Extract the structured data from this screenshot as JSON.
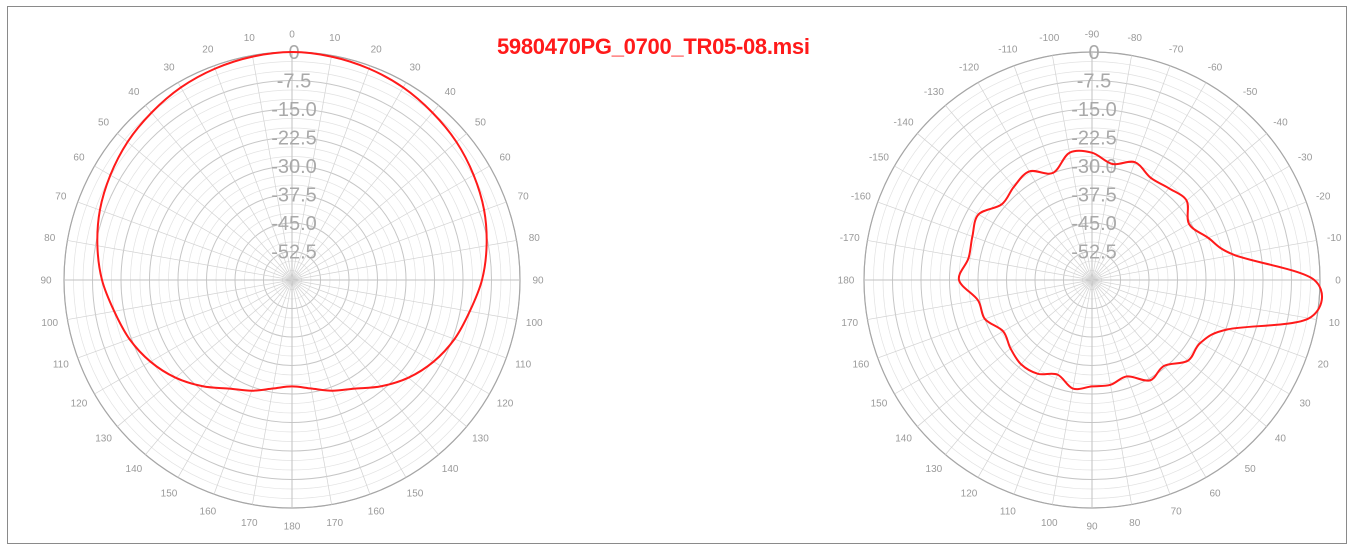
{
  "title": "5980470PG_0700_TR05-08.msi",
  "colors": {
    "trace": "#ff1a1a",
    "grid": "#d2d2d2",
    "title": "#ff1a1a"
  },
  "chart_data": [
    {
      "type": "polar",
      "name": "",
      "radial_labels": [
        "0",
        "-7.5",
        "-15.0",
        "-22.5",
        "-30.0",
        "-37.5",
        "-45.0",
        "-52.5"
      ],
      "radial_ticks": [
        0,
        -7.5,
        -15,
        -22.5,
        -30,
        -37.5,
        -45,
        -52.5
      ],
      "rlim": [
        -60,
        0
      ],
      "angle_labels": [
        "0",
        "10",
        "20",
        "30",
        "40",
        "50",
        "60",
        "70",
        "80",
        "90",
        "100",
        "110",
        "120",
        "130",
        "140",
        "150",
        "160",
        "170",
        "180",
        "170",
        "160",
        "150",
        "140",
        "130",
        "120",
        "110",
        "100",
        "90",
        "80",
        "70",
        "60",
        "50",
        "40",
        "30",
        "20",
        "10"
      ],
      "series": [
        {
          "angle_deg": [
            0,
            10,
            20,
            30,
            40,
            50,
            60,
            70,
            80,
            90,
            100,
            110,
            120,
            130,
            140,
            150,
            160,
            170,
            180,
            190,
            200,
            210,
            220,
            230,
            240,
            250,
            260,
            270,
            280,
            290,
            300,
            310,
            320,
            330,
            340,
            350
          ],
          "value_db": [
            0,
            -0.3,
            -0.8,
            -1.5,
            -2.5,
            -3.5,
            -4.8,
            -6.2,
            -8,
            -10,
            -12.5,
            -14.5,
            -17,
            -20,
            -23.5,
            -27,
            -29,
            -31,
            -32,
            -31,
            -29,
            -27,
            -23.5,
            -20,
            -17,
            -14.5,
            -12.5,
            -10,
            -8,
            -6.2,
            -4.8,
            -3.5,
            -2.5,
            -1.5,
            -0.8,
            -0.3
          ]
        }
      ]
    },
    {
      "type": "polar",
      "name": "",
      "radial_labels": [
        "0",
        "-7.5",
        "-15.0",
        "-22.5",
        "-30.0",
        "-37.5",
        "-45.0",
        "-52.5"
      ],
      "radial_ticks": [
        0,
        -7.5,
        -15,
        -22.5,
        -30,
        -37.5,
        -45,
        -52.5
      ],
      "rlim": [
        -60,
        0
      ],
      "angle_labels": [
        "-90",
        "-80",
        "-70",
        "-60",
        "-50",
        "-40",
        "-30",
        "-20",
        "-10",
        "0",
        "10",
        "20",
        "30",
        "40",
        "50",
        "60",
        "70",
        "80",
        "90",
        "100",
        "110",
        "120",
        "130",
        "140",
        "150",
        "160",
        "170",
        "180",
        "-170",
        "-160",
        "-150",
        "-140",
        "-130",
        "-120",
        "-110",
        "-100"
      ],
      "series": [
        {
          "angle_deg": [
            0,
            10,
            20,
            30,
            40,
            50,
            60,
            70,
            80,
            90,
            100,
            110,
            120,
            130,
            140,
            150,
            160,
            170,
            180,
            190,
            200,
            210,
            220,
            230,
            240,
            250,
            260,
            270,
            280,
            290,
            300,
            310,
            320,
            330,
            340,
            350
          ],
          "value_db": [
            -26.5,
            -29,
            -27,
            -29,
            -28.5,
            -27.5,
            -30.5,
            -27.5,
            -22,
            -1.5,
            -2,
            -22,
            -27,
            -27,
            -30.5,
            -29.5,
            -33,
            -32,
            -32,
            -31,
            -33.5,
            -31.5,
            -31,
            -32,
            -33,
            -30,
            -29.5,
            -25,
            -27,
            -26.5,
            -25.5,
            -29,
            -28,
            -27,
            -30,
            -26
          ]
        }
      ]
    }
  ]
}
